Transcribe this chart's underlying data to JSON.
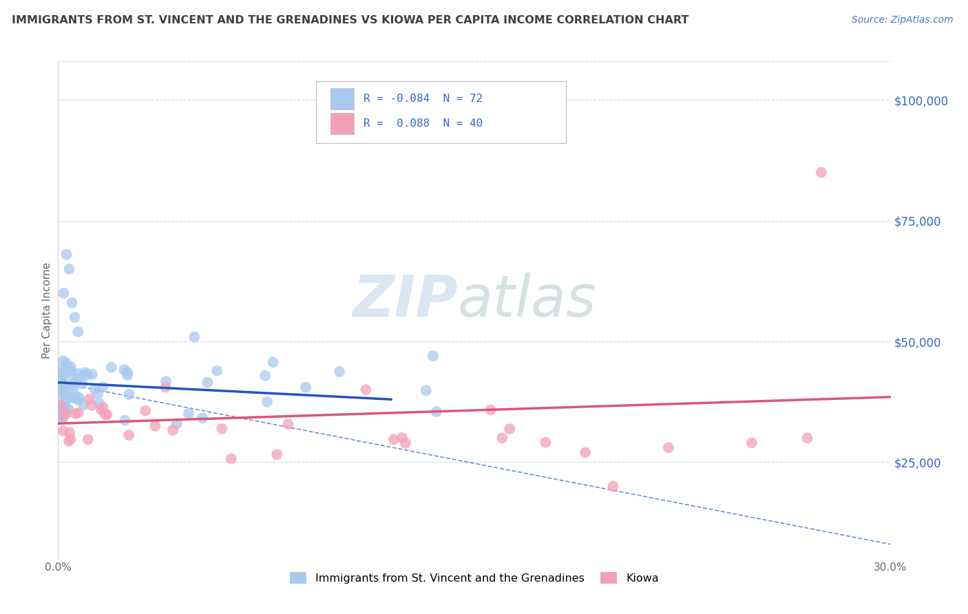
{
  "title": "IMMIGRANTS FROM ST. VINCENT AND THE GRENADINES VS KIOWA PER CAPITA INCOME CORRELATION CHART",
  "source": "Source: ZipAtlas.com",
  "ylabel": "Per Capita Income",
  "xlim": [
    0.0,
    0.3
  ],
  "ylim": [
    5000,
    108000
  ],
  "yticks": [
    25000,
    50000,
    75000,
    100000
  ],
  "yticklabels": [
    "$25,000",
    "$50,000",
    "$75,000",
    "$100,000"
  ],
  "blue_R": -0.084,
  "blue_N": 72,
  "pink_R": 0.088,
  "pink_N": 40,
  "blue_color": "#A8C8F0",
  "pink_color": "#F4A0B8",
  "blue_line_color": "#2255BB",
  "pink_line_color": "#DD5577",
  "blue_label": "Immigrants from St. Vincent and the Grenadines",
  "pink_label": "Kiowa",
  "title_color": "#404040",
  "source_color": "#4477CC",
  "background_color": "#FFFFFF",
  "grid_color": "#C8D8E8",
  "legend_box_color": "#AAAAAA",
  "legend_text_color": "#3366CC",
  "watermark_zip_color": "#C8D8EC",
  "watermark_atlas_color": "#A8C8C0",
  "right_axis_color": "#3366CC"
}
